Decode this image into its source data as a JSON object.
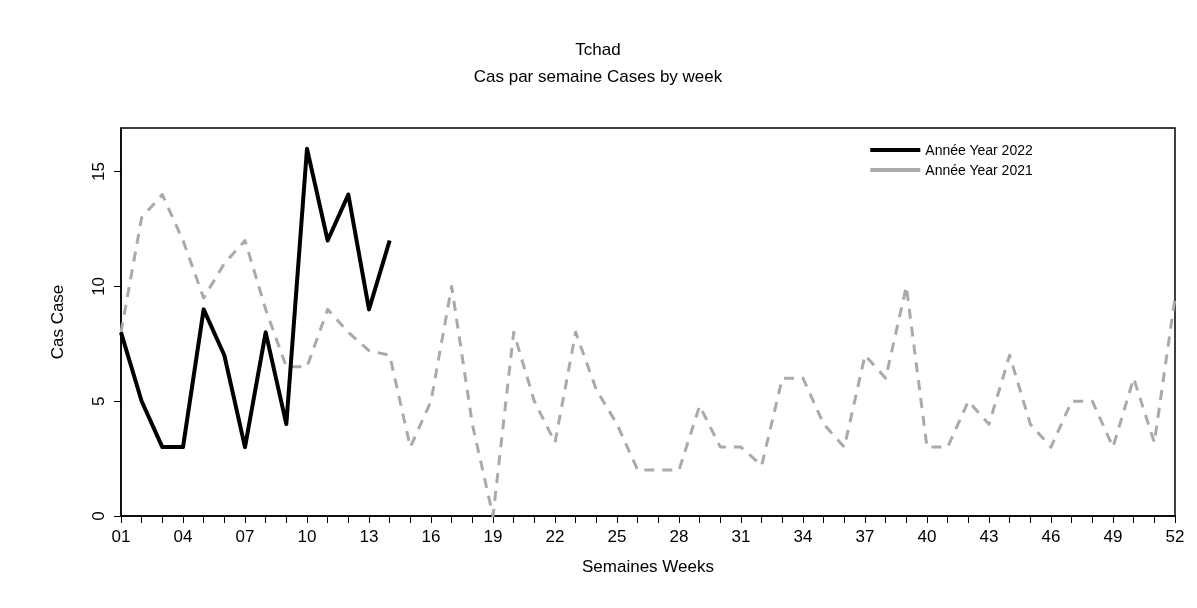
{
  "chart_data": {
    "type": "line",
    "title": "Tchad",
    "subtitle": "Cas par semaine Cases by week",
    "xlabel": "Semaines Weeks",
    "ylabel": "Cas Case",
    "categories": [
      "01",
      null,
      null,
      "04",
      null,
      null,
      "07",
      null,
      null,
      "10",
      null,
      null,
      "13",
      null,
      null,
      "16",
      null,
      null,
      "19",
      null,
      null,
      "22",
      null,
      null,
      "25",
      null,
      null,
      "28",
      null,
      null,
      "31",
      null,
      null,
      "34",
      null,
      null,
      "37",
      null,
      null,
      "40",
      null,
      null,
      "43",
      null,
      null,
      "46",
      null,
      null,
      "49",
      null,
      null,
      "52"
    ],
    "series": [
      {
        "name": "Année Year 2022",
        "color": "#000000",
        "line_style": "solid",
        "values": [
          8,
          5,
          3,
          3,
          9,
          7,
          3,
          8,
          4,
          16,
          12,
          14,
          9,
          12,
          null,
          null,
          null,
          null,
          null,
          null,
          null,
          null,
          null,
          null,
          null,
          null,
          null,
          null,
          null,
          null,
          null,
          null,
          null,
          null,
          null,
          null,
          null,
          null,
          null,
          null,
          null,
          null,
          null,
          null,
          null,
          null,
          null,
          null,
          null,
          null,
          null,
          null
        ]
      },
      {
        "name": "Année Year 2021",
        "color": "#aaaaaa",
        "line_style": "dashed",
        "values": [
          8,
          13,
          14,
          12,
          9.5,
          11,
          12,
          9,
          6.5,
          6.5,
          9,
          8,
          7.2,
          7,
          3,
          5,
          10,
          4,
          0,
          8,
          5,
          3.2,
          8,
          5.5,
          4,
          2,
          2,
          2,
          4.8,
          3,
          3,
          2.2,
          6,
          6,
          4,
          3,
          7,
          6,
          10,
          3,
          3,
          5,
          4,
          7,
          4,
          3,
          5,
          5,
          3,
          6,
          3.2,
          9.5
        ]
      }
    ],
    "ylim": [
      0,
      16.9
    ],
    "yticks": [
      0,
      5,
      10,
      15
    ],
    "grid": false,
    "legend": "top right",
    "marker": "none"
  }
}
